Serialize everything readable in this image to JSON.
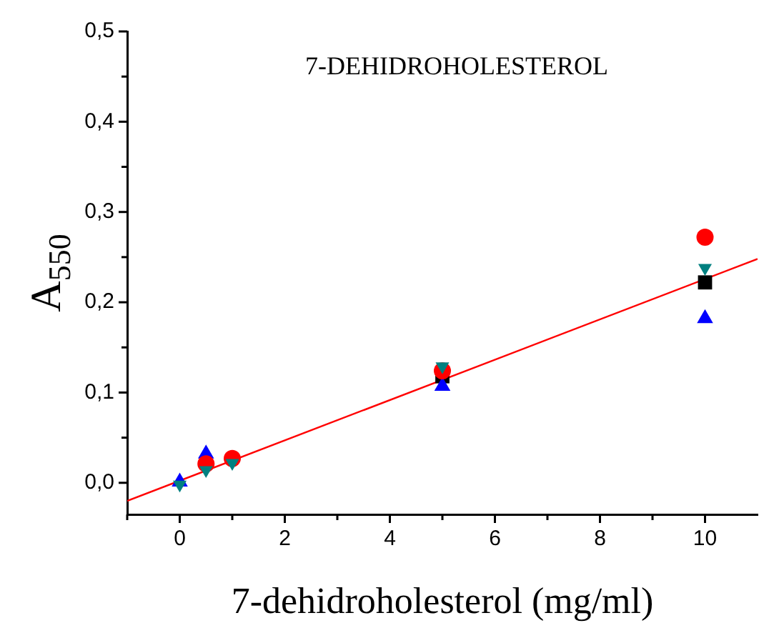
{
  "chart_data": {
    "type": "scatter",
    "title": "7-DEHIDROHOLESTEROL",
    "xlabel": "7-dehidroholesterol (mg/ml)",
    "ylabel": "A$_{550}$",
    "x": [
      0,
      0.5,
      1,
      5,
      10
    ],
    "series": [
      {
        "color": "#000000",
        "marker": "square",
        "values": [
          null,
          null,
          null,
          0.118,
          0.222
        ]
      },
      {
        "color": "#0000ff",
        "marker": "triangle",
        "values": [
          0.001,
          0.032,
          null,
          0.107,
          0.182
        ]
      },
      {
        "color": "#ff0000",
        "marker": "circle",
        "values": [
          null,
          0.021,
          0.027,
          0.124,
          0.272
        ]
      },
      {
        "color": "#008080",
        "marker": "triangle",
        "values": [
          -0.002,
          0.014,
          0.022,
          0.129,
          0.238
        ]
      },
      {
        "type": "line",
        "color": "#ff0000",
        "marker": "none",
        "line_style": "solid",
        "x": [
          -1,
          11
        ],
        "values": [
          -0.02,
          0.248
        ]
      }
    ],
    "xlim": [
      -1,
      11
    ],
    "ylim": [
      -0.035,
      0.5
    ],
    "xticks": [
      {
        "value": -1,
        "label": null
      },
      0,
      {
        "value": 1,
        "label": null
      },
      2,
      {
        "value": 3,
        "label": null
      },
      4,
      {
        "value": 5,
        "label": null
      },
      6,
      {
        "value": 7,
        "label": null
      },
      8,
      {
        "value": 9,
        "label": null
      },
      10
    ],
    "yticks": [
      {
        "value": 0,
        "label": "0,0"
      },
      {
        "value": 0.05,
        "label": null
      },
      {
        "value": 0.1,
        "label": "0,1"
      },
      {
        "value": 0.15,
        "label": null
      },
      {
        "value": 0.2,
        "label": "0,2"
      },
      {
        "value": 0.25,
        "label": null
      },
      {
        "value": 0.3,
        "label": "0,3"
      },
      {
        "value": 0.35,
        "label": null
      },
      {
        "value": 0.4,
        "label": "0,4"
      },
      {
        "value": 0.45,
        "label": null
      },
      {
        "value": 0.5,
        "label": "0,5"
      }
    ],
    "grid": false,
    "legend": false
  }
}
